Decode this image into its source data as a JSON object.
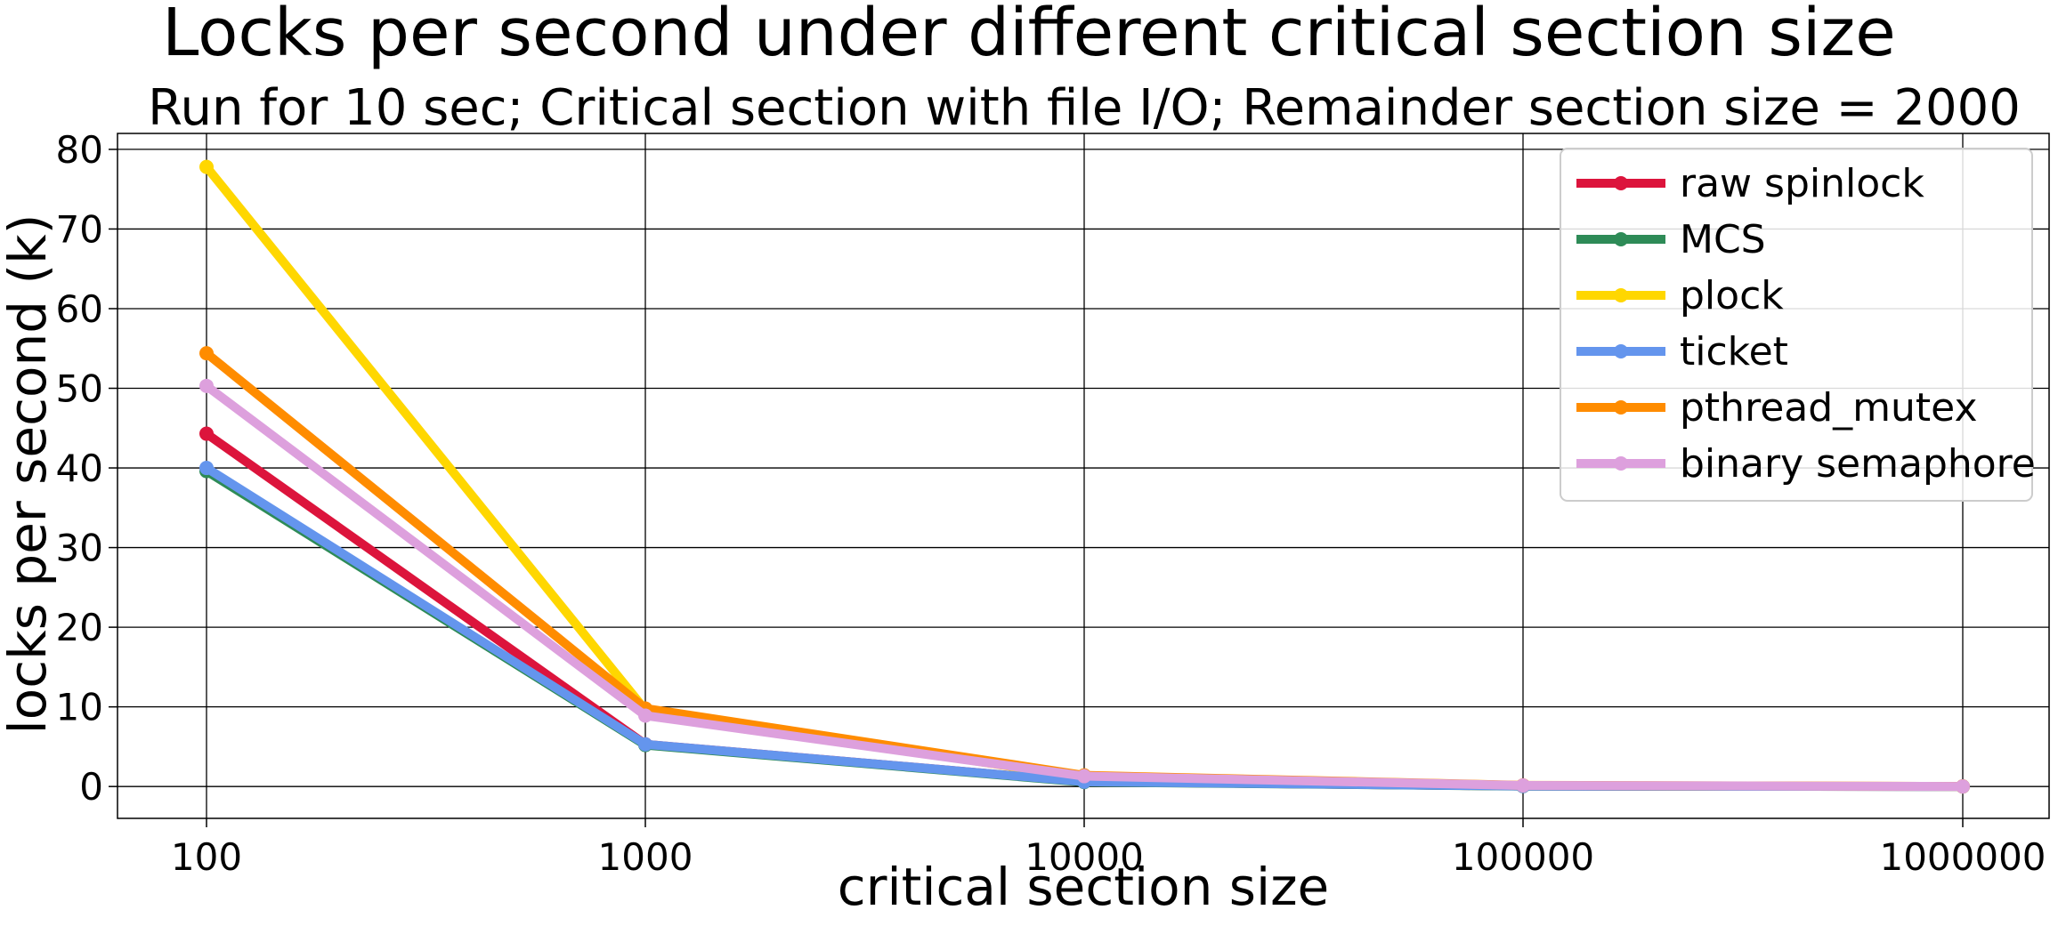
{
  "chart_data": {
    "type": "line",
    "title": "Locks per second under different critical section size",
    "subtitle": "Run for 10 sec; Critical section with file I/O; Remainder section size = 2000",
    "xlabel": "critical section size",
    "ylabel": "locks per second (k)",
    "x_scale": "log",
    "x": [
      100,
      1000,
      10000,
      100000,
      1000000
    ],
    "x_tick_labels": [
      "100",
      "1000",
      "10000",
      "100000",
      "1000000"
    ],
    "y_ticks": [
      0,
      10,
      20,
      30,
      40,
      50,
      60,
      70,
      80
    ],
    "y_tick_labels": [
      "0",
      "10",
      "20",
      "30",
      "40",
      "50",
      "60",
      "70",
      "80"
    ],
    "ylim": [
      -4,
      82
    ],
    "grid": true,
    "legend_position": "top-right",
    "series": [
      {
        "name": "raw spinlock",
        "color": "#DC143C",
        "values": [
          44.3,
          5.3,
          0.6,
          0.06,
          0.006
        ]
      },
      {
        "name": "MCS",
        "color": "#2E8B57",
        "values": [
          39.6,
          5.2,
          0.55,
          0.05,
          0.005
        ]
      },
      {
        "name": "plock",
        "color": "#FFD700",
        "values": [
          77.8,
          9.6,
          1.1,
          0.1,
          0.01
        ]
      },
      {
        "name": "ticket",
        "color": "#6495ED",
        "values": [
          40.0,
          5.3,
          0.6,
          0.06,
          0.006
        ]
      },
      {
        "name": "pthread_mutex",
        "color": "#FF8C00",
        "values": [
          54.4,
          9.8,
          1.4,
          0.15,
          0.015
        ]
      },
      {
        "name": "binary semaphore",
        "color": "#DDA0DD",
        "values": [
          50.3,
          8.9,
          1.3,
          0.13,
          0.013
        ]
      }
    ]
  }
}
